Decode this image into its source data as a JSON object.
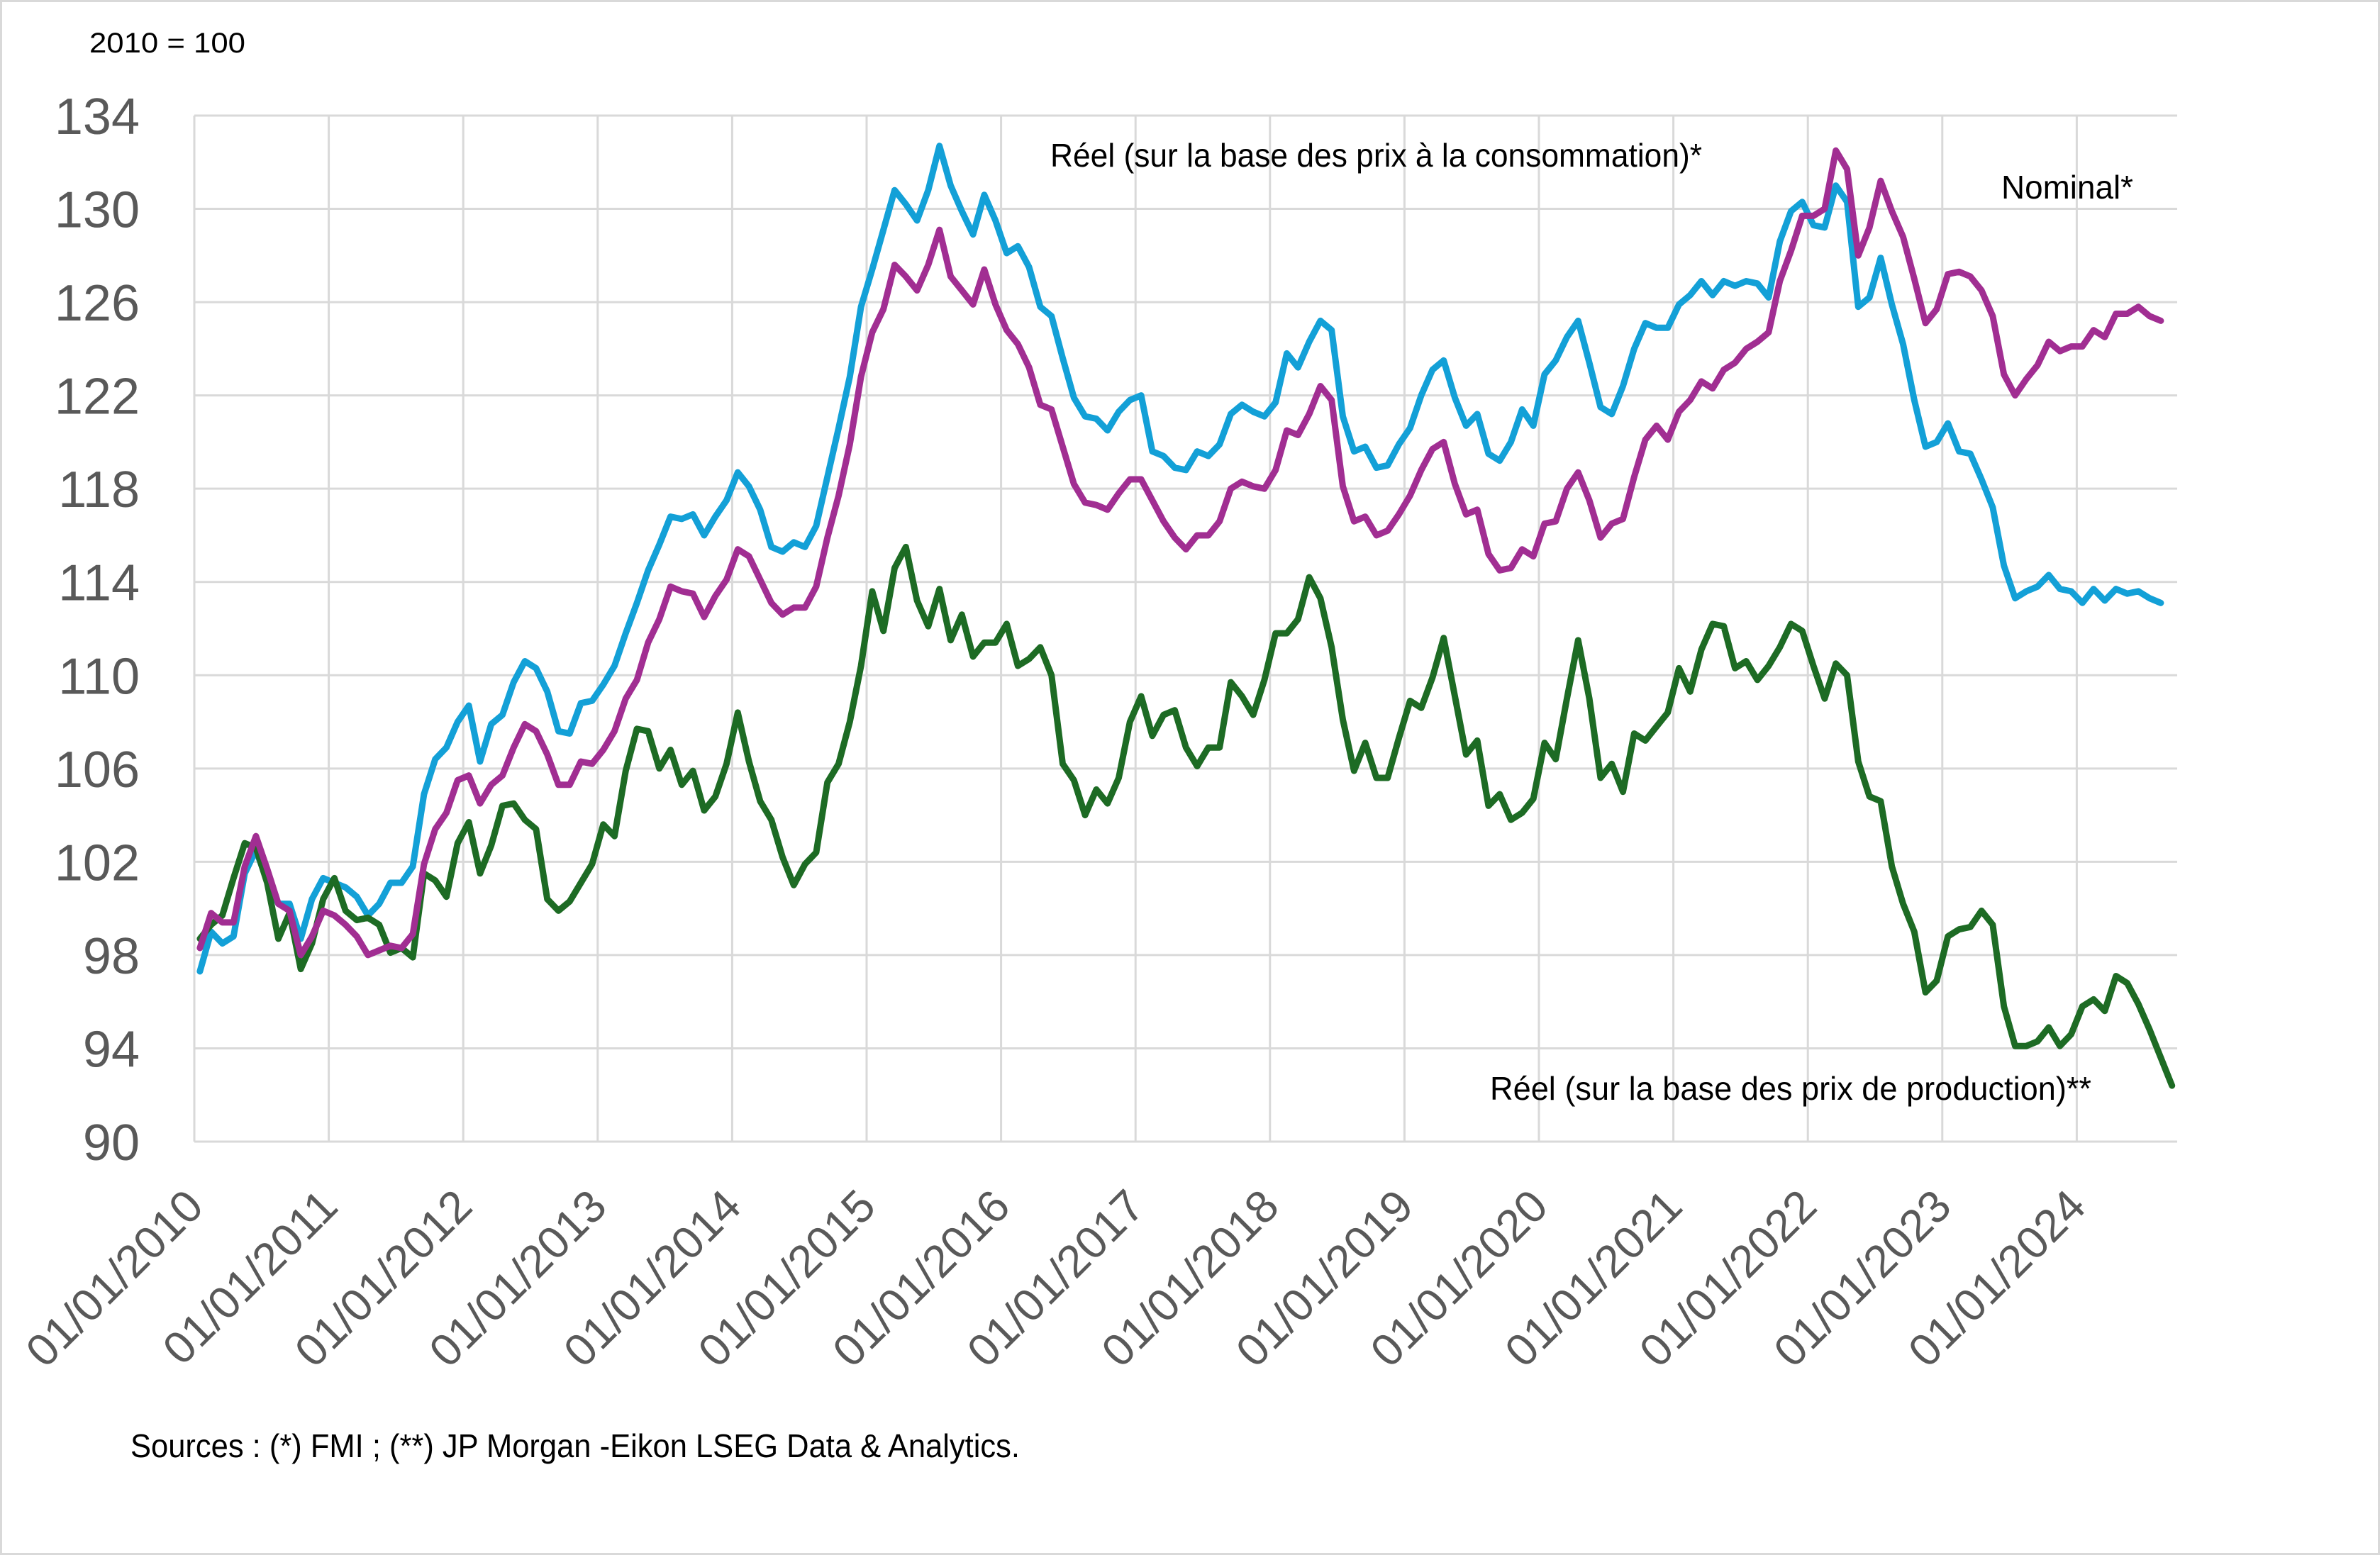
{
  "chart_data": {
    "type": "line",
    "title": "",
    "unit_label": "2010 = 100",
    "xlabel": "",
    "ylabel": "",
    "x_start": "2010-01",
    "frequency": "monthly",
    "x_tick_labels": [
      "01/01/2010",
      "01/01/2011",
      "01/01/2012",
      "01/01/2013",
      "01/01/2014",
      "01/01/2015",
      "01/01/2016",
      "01/01/2017",
      "01/01/2018",
      "01/01/2019",
      "01/01/2020",
      "01/01/2021",
      "01/01/2022",
      "01/01/2023",
      "01/01/2024"
    ],
    "y_ticks": [
      90,
      94,
      98,
      102,
      106,
      110,
      114,
      118,
      122,
      126,
      130,
      134
    ],
    "y_tick_labels": [
      "90",
      "94",
      "98",
      "102",
      "106",
      "110",
      "114",
      "118",
      "122",
      "126",
      "130",
      "134"
    ],
    "ylim": [
      90,
      134
    ],
    "grid": true,
    "legend": "inline labels next to each series",
    "series": [
      {
        "name": "Réel (sur la base des prix à la consommation)*",
        "color": "#13a0d7",
        "values": [
          97.3,
          99.0,
          98.5,
          98.8,
          101.5,
          102.5,
          101.2,
          100.2,
          100.2,
          98.7,
          100.4,
          101.3,
          101.1,
          100.9,
          100.5,
          99.7,
          100.2,
          101.1,
          101.1,
          101.8,
          104.9,
          106.4,
          106.9,
          108.0,
          108.7,
          106.3,
          107.9,
          108.3,
          109.7,
          110.6,
          110.3,
          109.3,
          107.6,
          107.5,
          108.8,
          108.9,
          109.6,
          110.4,
          111.8,
          113.1,
          114.5,
          115.6,
          116.8,
          116.7,
          116.9,
          116.0,
          116.8,
          117.5,
          118.7,
          118.1,
          117.1,
          115.5,
          115.3,
          115.7,
          115.5,
          116.4,
          118.5,
          120.6,
          122.8,
          125.8,
          127.4,
          129.1,
          130.8,
          130.2,
          129.5,
          130.8,
          132.7,
          131.0,
          129.9,
          128.9,
          130.6,
          129.5,
          128.1,
          128.4,
          127.5,
          125.8,
          125.4,
          123.6,
          121.9,
          121.1,
          121.0,
          120.5,
          121.3,
          121.8,
          122.0,
          119.6,
          119.4,
          118.9,
          118.8,
          119.6,
          119.4,
          119.9,
          121.2,
          121.6,
          121.3,
          121.1,
          121.7,
          123.8,
          123.2,
          124.3,
          125.2,
          124.8,
          121.1,
          119.6,
          119.8,
          118.9,
          119.0,
          119.9,
          120.6,
          122.0,
          123.1,
          123.5,
          121.9,
          120.7,
          121.2,
          119.5,
          119.2,
          120.0,
          121.4,
          120.7,
          122.9,
          123.5,
          124.5,
          125.2,
          123.4,
          121.5,
          121.2,
          122.4,
          124.0,
          125.1,
          124.9,
          124.9,
          125.9,
          126.3,
          126.9,
          126.3,
          126.9,
          126.7,
          126.9,
          126.8,
          126.2,
          128.6,
          129.9,
          130.3,
          129.3,
          129.2,
          131.0,
          130.3,
          125.8,
          126.2,
          127.9,
          125.9,
          124.2,
          121.8,
          119.8,
          120.0,
          120.8,
          119.6,
          119.5,
          118.4,
          117.2,
          114.7,
          113.3,
          113.6,
          113.8,
          114.3,
          113.7,
          113.6,
          113.1,
          113.7,
          113.2,
          113.7,
          113.5,
          113.6,
          113.3,
          113.1
        ]
      },
      {
        "name": "Nominal*",
        "color": "#a12e92",
        "values": [
          98.3,
          99.8,
          99.4,
          99.4,
          101.8,
          103.1,
          101.7,
          100.2,
          99.9,
          98.0,
          98.8,
          99.9,
          99.7,
          99.3,
          98.8,
          98.0,
          98.2,
          98.4,
          98.3,
          98.9,
          101.9,
          103.4,
          104.1,
          105.5,
          105.7,
          104.5,
          105.3,
          105.7,
          106.9,
          107.9,
          107.6,
          106.6,
          105.3,
          105.3,
          106.3,
          106.2,
          106.8,
          107.6,
          109.0,
          109.8,
          111.4,
          112.4,
          113.8,
          113.6,
          113.5,
          112.5,
          113.4,
          114.1,
          115.4,
          115.1,
          114.1,
          113.1,
          112.6,
          112.9,
          112.9,
          113.8,
          115.9,
          117.7,
          119.9,
          122.8,
          124.7,
          125.7,
          127.6,
          127.1,
          126.5,
          127.6,
          129.1,
          127.1,
          126.5,
          125.9,
          127.4,
          125.9,
          124.8,
          124.2,
          123.2,
          121.6,
          121.4,
          119.8,
          118.2,
          117.4,
          117.3,
          117.1,
          117.8,
          118.4,
          118.4,
          117.5,
          116.6,
          115.9,
          115.4,
          116.0,
          116.0,
          116.6,
          118.0,
          118.3,
          118.1,
          118.0,
          118.8,
          120.5,
          120.3,
          121.2,
          122.4,
          121.8,
          118.1,
          116.6,
          116.8,
          116.0,
          116.2,
          116.9,
          117.7,
          118.8,
          119.7,
          120.0,
          118.2,
          116.9,
          117.1,
          115.2,
          114.5,
          114.6,
          115.4,
          115.1,
          116.5,
          116.6,
          118.0,
          118.7,
          117.5,
          115.9,
          116.5,
          116.7,
          118.5,
          120.1,
          120.7,
          120.1,
          121.3,
          121.8,
          122.6,
          122.3,
          123.1,
          123.4,
          124.0,
          124.3,
          124.7,
          126.9,
          128.2,
          129.7,
          129.7,
          130.0,
          132.5,
          131.7,
          128.0,
          129.2,
          131.2,
          129.9,
          128.8,
          127.0,
          125.1,
          125.7,
          127.2,
          127.3,
          127.1,
          126.5,
          125.4,
          122.9,
          122.0,
          122.7,
          123.3,
          124.3,
          123.9,
          124.1,
          124.1,
          124.8,
          124.5,
          125.5,
          125.5,
          125.8,
          125.4,
          125.2
        ]
      },
      {
        "name": "Réel (sur la base des prix de production)**",
        "color": "#1d6b24",
        "values": [
          98.7,
          99.3,
          99.7,
          101.3,
          102.8,
          102.6,
          101.1,
          98.7,
          99.8,
          97.4,
          98.5,
          100.4,
          101.3,
          99.9,
          99.5,
          99.6,
          99.3,
          98.1,
          98.3,
          97.9,
          101.5,
          101.2,
          100.5,
          102.8,
          103.7,
          101.5,
          102.7,
          104.4,
          104.5,
          103.8,
          103.4,
          100.4,
          99.9,
          100.3,
          101.1,
          101.9,
          103.6,
          103.1,
          105.9,
          107.7,
          107.6,
          106.0,
          106.8,
          105.3,
          105.9,
          104.2,
          104.8,
          106.2,
          108.4,
          106.3,
          104.6,
          103.8,
          102.2,
          101.0,
          101.9,
          102.4,
          105.4,
          106.2,
          108.0,
          110.4,
          113.6,
          111.9,
          114.6,
          115.5,
          113.2,
          112.1,
          113.7,
          111.5,
          112.6,
          110.8,
          111.4,
          111.4,
          112.2,
          110.4,
          110.7,
          111.2,
          110.0,
          106.2,
          105.5,
          104.0,
          105.1,
          104.5,
          105.6,
          108.0,
          109.1,
          107.4,
          108.3,
          108.5,
          106.9,
          106.1,
          106.9,
          106.9,
          109.7,
          109.1,
          108.3,
          109.8,
          111.8,
          111.8,
          112.4,
          114.2,
          113.3,
          111.2,
          108.1,
          105.9,
          107.1,
          105.6,
          105.6,
          107.3,
          108.9,
          108.6,
          109.9,
          111.6,
          109.1,
          106.6,
          107.2,
          104.4,
          104.9,
          103.8,
          104.1,
          104.7,
          107.1,
          106.4,
          109.0,
          111.5,
          109.0,
          105.6,
          106.2,
          105.0,
          107.5,
          107.2,
          107.8,
          108.4,
          110.3,
          109.3,
          111.1,
          112.2,
          112.1,
          110.3,
          110.6,
          109.8,
          110.4,
          111.2,
          112.2,
          111.9,
          110.4,
          109.0,
          110.5,
          110.0,
          106.3,
          104.8,
          104.6,
          101.8,
          100.2,
          99.0,
          96.4,
          96.9,
          98.8,
          99.1,
          99.2,
          99.9,
          99.3,
          95.8,
          94.1,
          94.1,
          94.3,
          94.9,
          94.1,
          94.6,
          95.8,
          96.1,
          95.6,
          97.1,
          96.8,
          95.9,
          94.8,
          93.6,
          92.4
        ]
      }
    ],
    "source_note": "Sources : (*) FMI ; (**) JP Morgan -Eikon LSEG Data & Analytics."
  }
}
